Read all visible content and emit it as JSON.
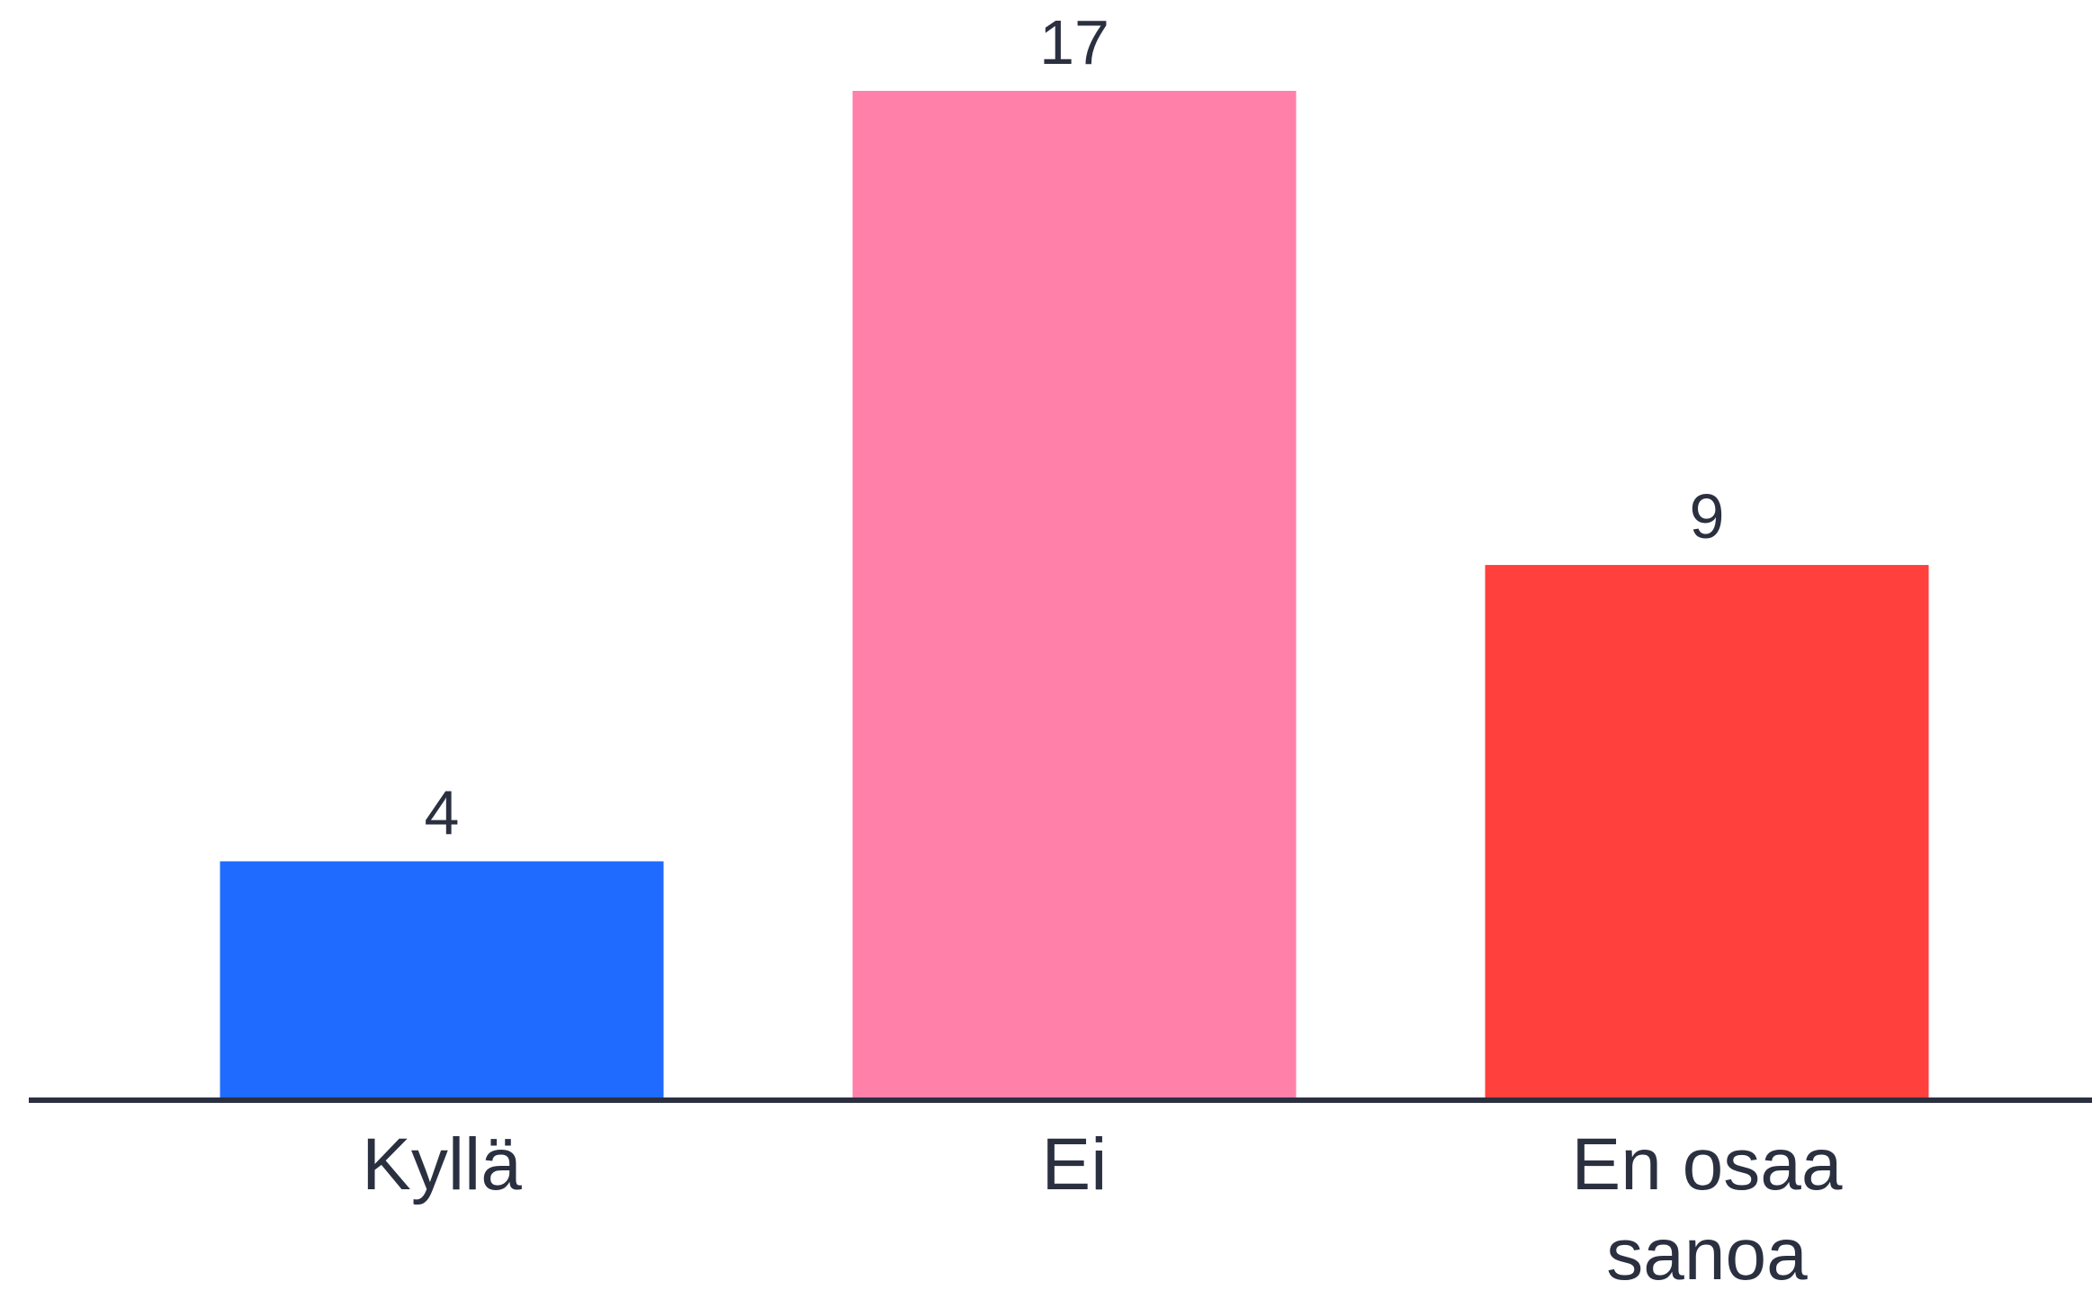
{
  "chart_data": {
    "type": "bar",
    "title": "",
    "xlabel": "",
    "ylabel": "",
    "categories": [
      "Kyllä",
      "Ei",
      "En osaa sanoa"
    ],
    "category_lines": [
      [
        "Kyllä"
      ],
      [
        "Ei"
      ],
      [
        "En osaa",
        "sanoa"
      ]
    ],
    "values": [
      4,
      17,
      9
    ],
    "value_labels": [
      "4",
      "17",
      "9"
    ],
    "colors": [
      "#1f6bff",
      "#ff80a8",
      "#ff403c"
    ],
    "ylim": [
      0,
      17
    ],
    "grid": false,
    "legend": "none",
    "axis_color": "#2b3040",
    "text_color": "#2b3040"
  }
}
